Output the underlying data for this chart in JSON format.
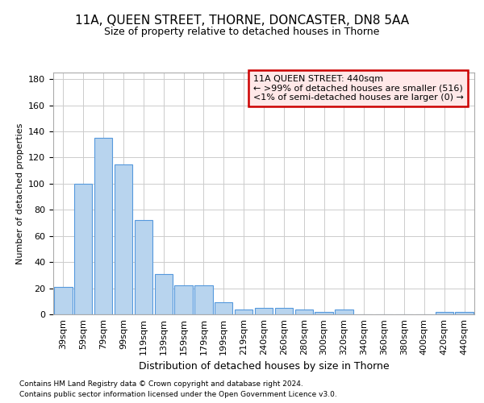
{
  "title": "11A, QUEEN STREET, THORNE, DONCASTER, DN8 5AA",
  "subtitle": "Size of property relative to detached houses in Thorne",
  "xlabel": "Distribution of detached houses by size in Thorne",
  "ylabel": "Number of detached properties",
  "footer1": "Contains HM Land Registry data © Crown copyright and database right 2024.",
  "footer2": "Contains public sector information licensed under the Open Government Licence v3.0.",
  "categories": [
    "39sqm",
    "59sqm",
    "79sqm",
    "99sqm",
    "119sqm",
    "139sqm",
    "159sqm",
    "179sqm",
    "199sqm",
    "219sqm",
    "240sqm",
    "260sqm",
    "280sqm",
    "300sqm",
    "320sqm",
    "340sqm",
    "360sqm",
    "380sqm",
    "400sqm",
    "420sqm",
    "440sqm"
  ],
  "values": [
    21,
    100,
    135,
    115,
    72,
    31,
    22,
    22,
    9,
    4,
    5,
    5,
    4,
    2,
    4,
    0,
    0,
    0,
    0,
    2,
    2
  ],
  "bar_color": "#b8d4ee",
  "bar_edge_color": "#5599dd",
  "annotation_line1": "11A QUEEN STREET: 440sqm",
  "annotation_line2": "← >99% of detached houses are smaller (516)",
  "annotation_line3": "<1% of semi-detached houses are larger (0) →",
  "annotation_box_facecolor": "#ffe8e8",
  "annotation_box_edgecolor": "#cc0000",
  "ylim": [
    0,
    185
  ],
  "yticks": [
    0,
    20,
    40,
    60,
    80,
    100,
    120,
    140,
    160,
    180
  ],
  "background_color": "#ffffff",
  "grid_color": "#cccccc",
  "title_fontsize": 11,
  "subtitle_fontsize": 9,
  "xlabel_fontsize": 9,
  "ylabel_fontsize": 8,
  "tick_fontsize": 8,
  "annotation_fontsize": 8,
  "footer_fontsize": 6.5
}
